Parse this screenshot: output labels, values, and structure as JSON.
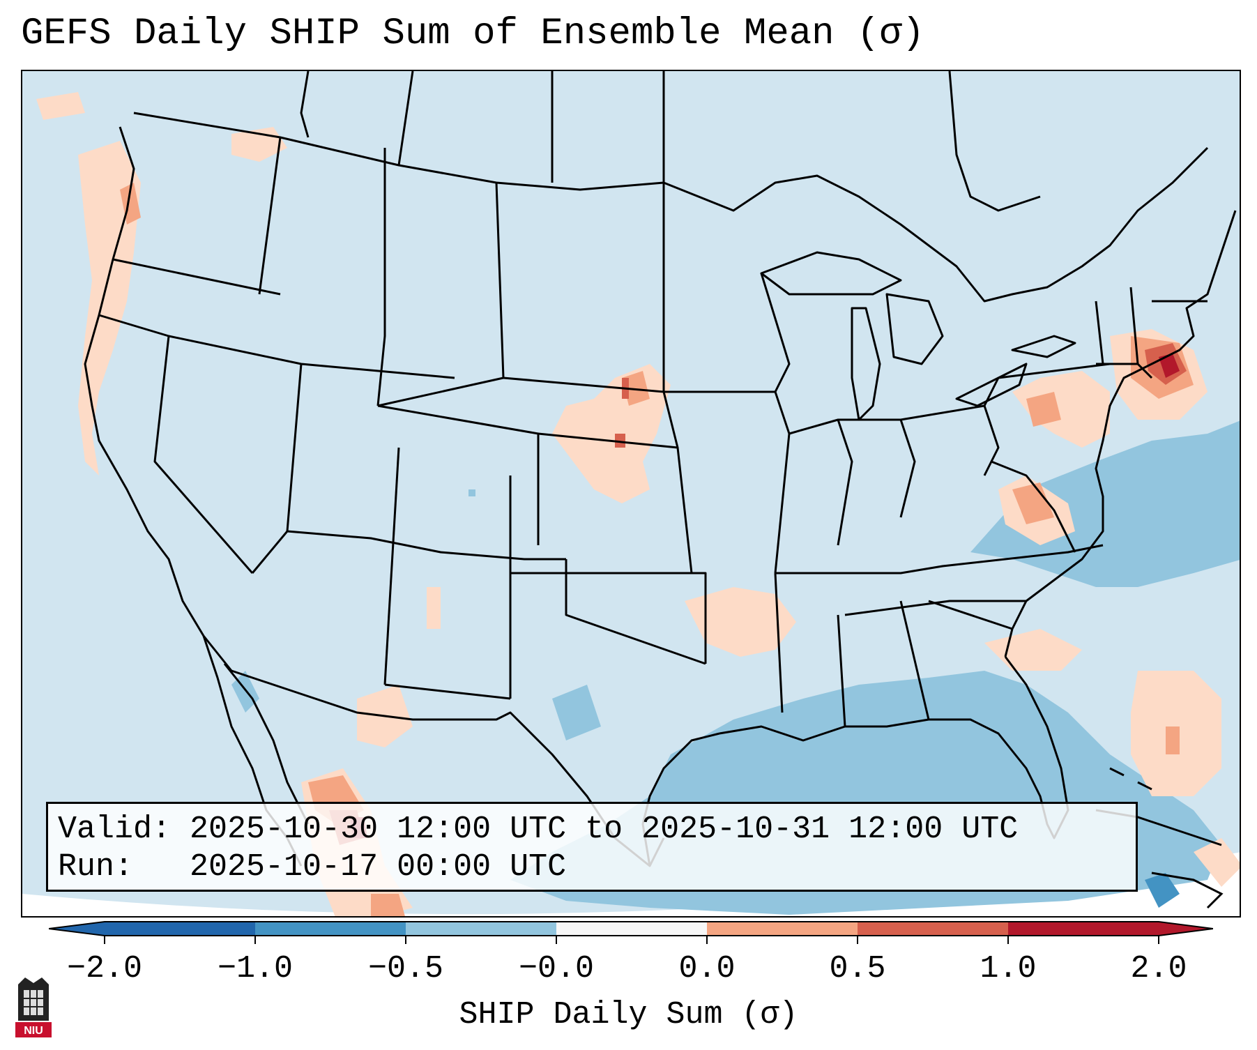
{
  "title": "GEFS Daily SHIP Sum of Ensemble Mean (σ)",
  "info": {
    "valid_line": "Valid: 2025-10-30 12:00 UTC to 2025-10-31 12:00 UTC",
    "run_line": "Run:   2025-10-17 00:00 UTC"
  },
  "colorbar": {
    "title": "SHIP Daily Sum (σ)",
    "ticks": [
      "−2.0",
      "−1.0",
      "−0.5",
      "−0.0",
      "0.0",
      "0.5",
      "1.0",
      "2.0"
    ],
    "colors": [
      "#2166ac",
      "#4393c3",
      "#92c5de",
      "#d1e5f0",
      "#fddbc7",
      "#f4a582",
      "#d6604d",
      "#b2182b"
    ],
    "background_color": "#d1e5f0"
  },
  "logo": {
    "text": "NIU",
    "icon": "niu-logo-icon"
  }
}
